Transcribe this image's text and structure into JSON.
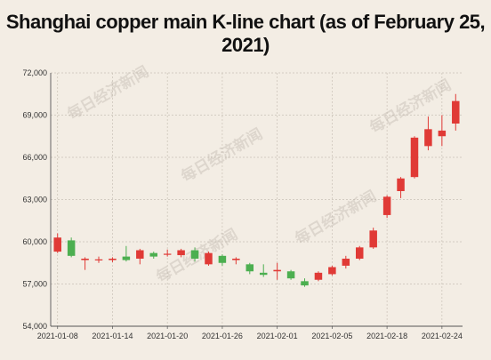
{
  "chart_data": {
    "type": "candlestick",
    "title": "Shanghai copper main K-line chart (as of February 25, 2021)",
    "xlabel": "",
    "ylabel": "",
    "ylim": [
      54000,
      72000
    ],
    "yticks": [
      54000,
      57000,
      60000,
      63000,
      66000,
      69000,
      72000
    ],
    "ytick_labels": [
      "54,000",
      "57,000",
      "60,000",
      "63,000",
      "66,000",
      "69,000",
      "72,000"
    ],
    "xtick_labels": [
      "2021-01-08",
      "2021-01-14",
      "2021-01-20",
      "2021-01-26",
      "2021-02-01",
      "2021-02-05",
      "2021-02-18",
      "2021-02-24"
    ],
    "xtick_index": [
      0,
      4,
      8,
      12,
      16,
      20,
      24,
      28
    ],
    "grid": true,
    "up_color": "#e03a36",
    "down_color": "#4caf50",
    "candles": [
      {
        "date": "2021-01-08",
        "open": 59300,
        "close": 60300,
        "high": 60600,
        "low": 59200
      },
      {
        "date": "2021-01-11",
        "open": 60100,
        "close": 59000,
        "high": 60300,
        "low": 58900
      },
      {
        "date": "2021-01-12",
        "open": 58700,
        "close": 58800,
        "high": 58900,
        "low": 58000
      },
      {
        "date": "2021-01-13",
        "open": 58700,
        "close": 58750,
        "high": 58950,
        "low": 58500
      },
      {
        "date": "2021-01-14",
        "open": 58700,
        "close": 58800,
        "high": 58900,
        "low": 58550
      },
      {
        "date": "2021-01-15",
        "open": 58950,
        "close": 58700,
        "high": 59700,
        "low": 58600
      },
      {
        "date": "2021-01-18",
        "open": 58800,
        "close": 59400,
        "high": 59500,
        "low": 58400
      },
      {
        "date": "2021-01-19",
        "open": 59200,
        "close": 58950,
        "high": 59300,
        "low": 58800
      },
      {
        "date": "2021-01-20",
        "open": 59100,
        "close": 59150,
        "high": 59450,
        "low": 58950
      },
      {
        "date": "2021-01-21",
        "open": 59050,
        "close": 59400,
        "high": 59500,
        "low": 58900
      },
      {
        "date": "2021-01-22",
        "open": 59400,
        "close": 58800,
        "high": 59600,
        "low": 58600
      },
      {
        "date": "2021-01-25",
        "open": 58400,
        "close": 59200,
        "high": 59300,
        "low": 58300
      },
      {
        "date": "2021-01-26",
        "open": 59000,
        "close": 58500,
        "high": 59100,
        "low": 58300
      },
      {
        "date": "2021-01-27",
        "open": 58700,
        "close": 58800,
        "high": 58900,
        "low": 58400
      },
      {
        "date": "2021-01-28",
        "open": 58400,
        "close": 57900,
        "high": 58500,
        "low": 57700
      },
      {
        "date": "2021-01-29",
        "open": 57800,
        "close": 57650,
        "high": 58400,
        "low": 57500
      },
      {
        "date": "2021-02-01",
        "open": 57900,
        "close": 58000,
        "high": 58500,
        "low": 57300
      },
      {
        "date": "2021-02-02",
        "open": 57900,
        "close": 57400,
        "high": 58000,
        "low": 57300
      },
      {
        "date": "2021-02-03",
        "open": 57200,
        "close": 56900,
        "high": 57400,
        "low": 56800
      },
      {
        "date": "2021-02-04",
        "open": 57300,
        "close": 57800,
        "high": 57900,
        "low": 57200
      },
      {
        "date": "2021-02-05",
        "open": 57700,
        "close": 58200,
        "high": 58300,
        "low": 57600
      },
      {
        "date": "2021-02-08",
        "open": 58300,
        "close": 58800,
        "high": 59000,
        "low": 58100
      },
      {
        "date": "2021-02-09",
        "open": 58800,
        "close": 59600,
        "high": 59700,
        "low": 58700
      },
      {
        "date": "2021-02-10",
        "open": 59600,
        "close": 60800,
        "high": 61000,
        "low": 59500
      },
      {
        "date": "2021-02-18",
        "open": 61900,
        "close": 63200,
        "high": 63300,
        "low": 61700
      },
      {
        "date": "2021-02-19",
        "open": 63600,
        "close": 64500,
        "high": 64600,
        "low": 63100
      },
      {
        "date": "2021-02-22",
        "open": 64600,
        "close": 67400,
        "high": 67500,
        "low": 64500
      },
      {
        "date": "2021-02-23",
        "open": 66800,
        "close": 68000,
        "high": 68900,
        "low": 66500
      },
      {
        "date": "2021-02-24",
        "open": 67500,
        "close": 67900,
        "high": 69000,
        "low": 66800
      },
      {
        "date": "2021-02-25",
        "open": 68400,
        "close": 70000,
        "high": 70500,
        "low": 67900
      }
    ]
  },
  "watermark": "每日经济新闻"
}
